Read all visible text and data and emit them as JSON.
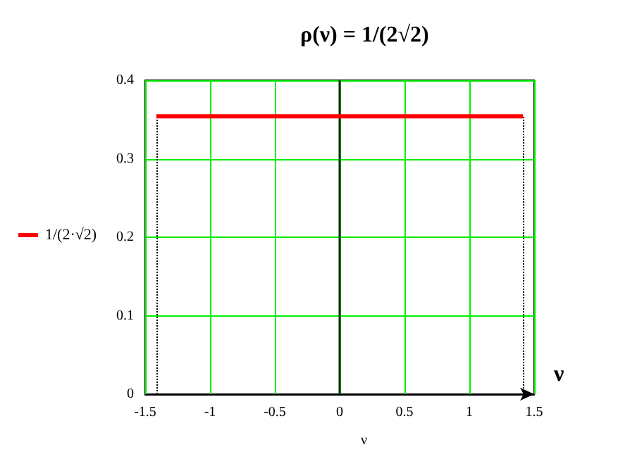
{
  "chart_data": {
    "type": "line",
    "title": "ρ(ν) = 1/(2√2)",
    "xlabel": "ν",
    "annotations": [
      "ν"
    ],
    "x": [
      -1.414,
      1.414
    ],
    "series": [
      {
        "name": "1/(2·√2)",
        "color": "#ff0000",
        "values": [
          0.354,
          0.354
        ]
      }
    ],
    "xlim": [
      -1.5,
      1.5
    ],
    "xticks": [
      -1.5,
      -1,
      -0.5,
      0,
      0.5,
      1,
      1.5
    ],
    "ylim": [
      0,
      0.4
    ],
    "yticks": [
      0,
      0.1,
      0.2,
      0.3,
      0.4
    ],
    "grid": true,
    "legend": "left",
    "marker": "none",
    "line_style": "solid",
    "ref_lines": [
      {
        "axis": "x",
        "value": -1.414,
        "line_style": "dotted",
        "color": "#000000"
      },
      {
        "axis": "x",
        "value": 1.414,
        "line_style": "dotted",
        "color": "#000000"
      }
    ]
  }
}
